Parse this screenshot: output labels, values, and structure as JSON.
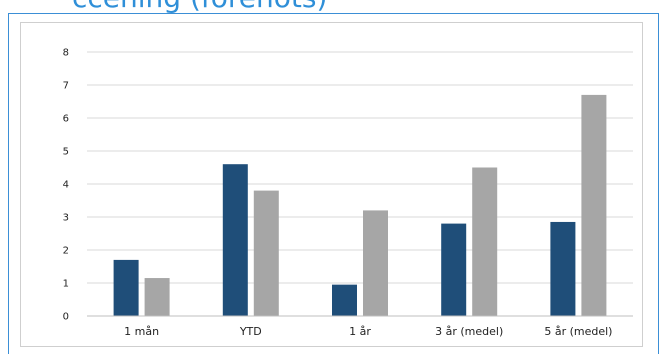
{
  "header": {
    "title_fragment": "ccening (forenots)"
  },
  "chart_data": {
    "type": "bar",
    "categories": [
      "1 mån",
      "YTD",
      "1 år",
      "3 år (medel)",
      "5 år (medel)"
    ],
    "series": [
      {
        "values": [
          1.7,
          4.6,
          0.95,
          2.8,
          2.85
        ],
        "color": "#1f4e79"
      },
      {
        "values": [
          1.15,
          3.8,
          3.2,
          4.5,
          6.7
        ],
        "color": "#a6a6a6"
      }
    ],
    "title": "",
    "xlabel": "",
    "ylabel": "",
    "ylim": [
      0,
      8
    ],
    "yticks": [
      0,
      1,
      2,
      3,
      4,
      5,
      6,
      7,
      8
    ],
    "grid": true,
    "legend": "none"
  }
}
